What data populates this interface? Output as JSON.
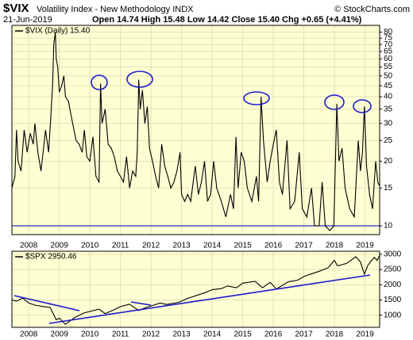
{
  "header": {
    "symbol": "$VIX",
    "name": "Volatility Index - New Methodology INDX",
    "date": "21-Jun-2019",
    "quote": "Open 14.74 High 15.48 Low 14.42 Close 15.40 Chg +0.65 (+4.41%)",
    "credit": "© StockCharts.com"
  },
  "chart_data": [
    {
      "type": "line",
      "log_scale": true,
      "grid": true,
      "reference_line": 10,
      "reference_color": "#1a1acc",
      "xlim": [
        2007.45,
        2019.48
      ],
      "xticks": [
        2008,
        2009,
        2010,
        2011,
        2012,
        2013,
        2014,
        2015,
        2016,
        2017,
        2018,
        2019
      ],
      "ylim": [
        9.1,
        86
      ],
      "yticks": [
        10,
        15,
        20,
        25,
        30,
        35,
        40,
        45,
        50,
        55,
        60,
        65,
        70,
        75,
        80
      ],
      "x": [
        2007.45,
        2007.55,
        2007.6,
        2007.65,
        2007.75,
        2007.85,
        2007.95,
        2008.05,
        2008.15,
        2008.2,
        2008.3,
        2008.4,
        2008.5,
        2008.55,
        2008.65,
        2008.72,
        2008.78,
        2008.82,
        2008.87,
        2008.9,
        2008.95,
        2009.0,
        2009.08,
        2009.15,
        2009.2,
        2009.3,
        2009.4,
        2009.48,
        2009.55,
        2009.65,
        2009.75,
        2009.82,
        2009.9,
        2010.0,
        2010.1,
        2010.2,
        2010.3,
        2010.35,
        2010.4,
        2010.5,
        2010.6,
        2010.7,
        2010.8,
        2010.9,
        2011.0,
        2011.1,
        2011.2,
        2011.3,
        2011.4,
        2011.5,
        2011.55,
        2011.6,
        2011.65,
        2011.72,
        2011.8,
        2011.88,
        2011.95,
        2012.05,
        2012.15,
        2012.25,
        2012.35,
        2012.45,
        2012.55,
        2012.65,
        2012.75,
        2012.85,
        2012.95,
        2013.0,
        2013.1,
        2013.2,
        2013.3,
        2013.45,
        2013.55,
        2013.65,
        2013.75,
        2013.85,
        2013.95,
        2014.05,
        2014.15,
        2014.3,
        2014.45,
        2014.6,
        2014.7,
        2014.78,
        2014.85,
        2014.95,
        2015.05,
        2015.15,
        2015.3,
        2015.45,
        2015.52,
        2015.6,
        2015.68,
        2015.8,
        2015.9,
        2016.0,
        2016.1,
        2016.2,
        2016.3,
        2016.45,
        2016.55,
        2016.7,
        2016.85,
        2016.95,
        2017.1,
        2017.25,
        2017.35,
        2017.5,
        2017.6,
        2017.7,
        2017.85,
        2017.98,
        2018.08,
        2018.15,
        2018.25,
        2018.35,
        2018.5,
        2018.65,
        2018.78,
        2018.85,
        2018.92,
        2018.98,
        2019.05,
        2019.15,
        2019.25,
        2019.35,
        2019.42,
        2019.47
      ],
      "series": [
        {
          "name": "$VIX (Daily) 15.40",
          "color": "#000000",
          "values": [
            15,
            17,
            28,
            20,
            18,
            28,
            22,
            27,
            24,
            30,
            22,
            18,
            24,
            28,
            22,
            32,
            45,
            70,
            80,
            60,
            55,
            42,
            45,
            50,
            40,
            38,
            32,
            28,
            25,
            24,
            22,
            28,
            21,
            20,
            26,
            17,
            16,
            46,
            30,
            35,
            24,
            23,
            21,
            18,
            17,
            16,
            21,
            15,
            18,
            17,
            22,
            48,
            35,
            43,
            30,
            36,
            23,
            20,
            17,
            15,
            24,
            19,
            17,
            15,
            16,
            18,
            22,
            14,
            13,
            14,
            13,
            19,
            14,
            16,
            20,
            13,
            14,
            20,
            15,
            13,
            11,
            14,
            12,
            26,
            15,
            22,
            20,
            15,
            13,
            17,
            13,
            40,
            25,
            16,
            20,
            24,
            28,
            16,
            14,
            25,
            12,
            13,
            22,
            12,
            11,
            15,
            10,
            10,
            16,
            10,
            9.5,
            10,
            37,
            20,
            23,
            15,
            12,
            11,
            25,
            18,
            22,
            36,
            19,
            14,
            12,
            20,
            16,
            15.4
          ]
        }
      ]
    },
    {
      "type": "line",
      "log_scale": false,
      "grid": true,
      "xlim": [
        2007.45,
        2019.48
      ],
      "xticks": [
        2008,
        2009,
        2010,
        2011,
        2012,
        2013,
        2014,
        2015,
        2016,
        2017,
        2018,
        2019
      ],
      "ylim": [
        600,
        3100
      ],
      "yticks": [
        1000,
        1500,
        2000,
        2500,
        3000
      ],
      "x": [
        2007.45,
        2007.6,
        2007.8,
        2008.0,
        2008.2,
        2008.5,
        2008.7,
        2008.9,
        2009.0,
        2009.2,
        2009.5,
        2009.8,
        2010.0,
        2010.3,
        2010.5,
        2010.8,
        2011.0,
        2011.3,
        2011.6,
        2011.8,
        2012.0,
        2012.3,
        2012.5,
        2012.9,
        2013.2,
        2013.5,
        2013.8,
        2014.0,
        2014.3,
        2014.5,
        2014.8,
        2015.0,
        2015.4,
        2015.65,
        2015.9,
        2016.1,
        2016.5,
        2016.8,
        2017.0,
        2017.5,
        2017.8,
        2018.0,
        2018.1,
        2018.4,
        2018.7,
        2018.85,
        2018.98,
        2019.1,
        2019.3,
        2019.4,
        2019.47
      ],
      "series": [
        {
          "name": "$SPX 2950.46",
          "color": "#000000",
          "values": [
            1500,
            1460,
            1560,
            1400,
            1330,
            1280,
            1250,
            850,
            900,
            700,
            920,
            1070,
            1120,
            1200,
            1050,
            1180,
            1280,
            1360,
            1150,
            1240,
            1300,
            1400,
            1350,
            1420,
            1550,
            1650,
            1750,
            1840,
            1870,
            1960,
            1900,
            2050,
            2110,
            1900,
            2080,
            1860,
            2100,
            2150,
            2270,
            2440,
            2560,
            2800,
            2620,
            2700,
            2920,
            2750,
            2350,
            2650,
            2900,
            2800,
            2950
          ]
        }
      ]
    }
  ]
}
